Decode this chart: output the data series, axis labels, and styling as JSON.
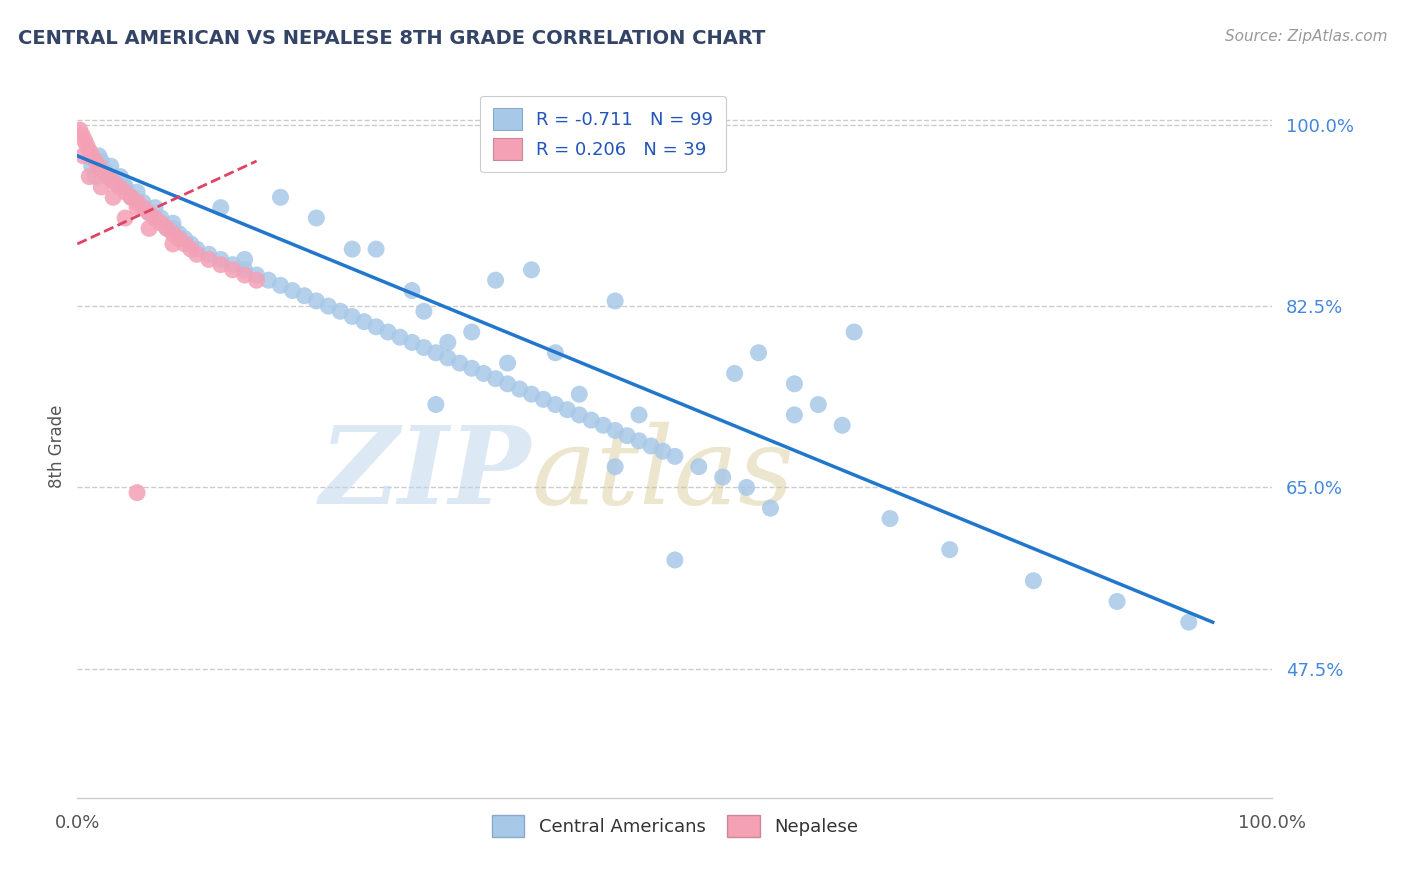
{
  "title": "CENTRAL AMERICAN VS NEPALESE 8TH GRADE CORRELATION CHART",
  "source": "Source: ZipAtlas.com",
  "ylabel": "8th Grade",
  "ytick_vals": [
    47.5,
    65.0,
    82.5,
    100.0
  ],
  "ytick_labels": [
    "47.5%",
    "65.0%",
    "82.5%",
    "100.0%"
  ],
  "xtick_vals": [
    0,
    100
  ],
  "xtick_labels": [
    "0.0%",
    "100.0%"
  ],
  "xlim": [
    0,
    100
  ],
  "ylim": [
    35,
    103
  ],
  "blue_color": "#a8c8e8",
  "pink_color": "#f4a0b5",
  "trend_blue_color": "#2277cc",
  "trend_pink_color": "#dd4466",
  "legend1_label": "R = -0.711   N = 99",
  "legend2_label": "R = 0.206   N = 39",
  "bottom_legend1": "Central Americans",
  "bottom_legend2": "Nepalese",
  "watermark_zip": "ZIP",
  "watermark_atlas": "atlas",
  "title_color": "#334466",
  "title_fontsize": 14,
  "label_color": "#555555",
  "ytick_color": "#4488dd",
  "xtick_color": "#555555",
  "source_color": "#999999",
  "grid_color": "#cccccc",
  "trend_blue_x0": 0,
  "trend_blue_y0": 97.0,
  "trend_blue_x1": 95,
  "trend_blue_y1": 52.0,
  "trend_pink_x0": 0,
  "trend_pink_y0": 88.5,
  "trend_pink_x1": 15,
  "trend_pink_y1": 96.5,
  "blue_x": [
    1.2,
    1.5,
    1.8,
    2.0,
    2.3,
    2.8,
    3.2,
    3.6,
    4.0,
    4.5,
    5.0,
    5.5,
    6.0,
    6.5,
    7.0,
    7.5,
    8.0,
    8.5,
    9.0,
    9.5,
    10.0,
    11.0,
    12.0,
    13.0,
    14.0,
    15.0,
    16.0,
    17.0,
    18.0,
    19.0,
    20.0,
    21.0,
    22.0,
    23.0,
    24.0,
    25.0,
    26.0,
    27.0,
    28.0,
    29.0,
    30.0,
    31.0,
    32.0,
    33.0,
    34.0,
    35.0,
    36.0,
    37.0,
    38.0,
    39.0,
    40.0,
    41.0,
    42.0,
    43.0,
    44.0,
    45.0,
    46.0,
    47.0,
    48.0,
    49.0,
    50.0,
    52.0,
    54.0,
    56.0,
    57.0,
    58.0,
    60.0,
    62.0,
    64.0,
    65.0,
    45.0,
    38.0,
    29.0,
    23.0,
    31.0,
    36.0,
    42.0,
    47.0,
    28.0,
    33.0,
    55.0,
    60.0,
    35.0,
    40.0,
    25.0,
    20.0,
    17.0,
    14.0,
    8.0,
    4.0,
    68.0,
    73.0,
    80.0,
    87.0,
    93.0,
    50.0,
    45.0,
    30.0,
    12.0
  ],
  "blue_y": [
    96.0,
    95.0,
    97.0,
    96.5,
    95.5,
    96.0,
    94.5,
    95.0,
    94.0,
    93.0,
    93.5,
    92.5,
    91.5,
    92.0,
    91.0,
    90.0,
    90.5,
    89.5,
    89.0,
    88.5,
    88.0,
    87.5,
    87.0,
    86.5,
    86.0,
    85.5,
    85.0,
    84.5,
    84.0,
    83.5,
    83.0,
    82.5,
    82.0,
    81.5,
    81.0,
    80.5,
    80.0,
    79.5,
    79.0,
    78.5,
    78.0,
    77.5,
    77.0,
    76.5,
    76.0,
    75.5,
    75.0,
    74.5,
    74.0,
    73.5,
    73.0,
    72.5,
    72.0,
    71.5,
    71.0,
    70.5,
    70.0,
    69.5,
    69.0,
    68.5,
    68.0,
    67.0,
    66.0,
    65.0,
    78.0,
    63.0,
    75.0,
    73.0,
    71.0,
    80.0,
    83.0,
    86.0,
    82.0,
    88.0,
    79.0,
    77.0,
    74.0,
    72.0,
    84.0,
    80.0,
    76.0,
    72.0,
    85.0,
    78.0,
    88.0,
    91.0,
    93.0,
    87.0,
    90.0,
    94.0,
    62.0,
    59.0,
    56.0,
    54.0,
    52.0,
    58.0,
    67.0,
    73.0,
    92.0
  ],
  "pink_x": [
    0.2,
    0.4,
    0.6,
    0.8,
    1.0,
    1.2,
    1.5,
    1.8,
    2.0,
    2.5,
    3.0,
    3.5,
    4.0,
    4.5,
    5.0,
    5.5,
    6.0,
    6.5,
    7.0,
    7.5,
    8.0,
    8.5,
    9.0,
    9.5,
    10.0,
    11.0,
    12.0,
    13.0,
    14.0,
    15.0,
    0.5,
    1.0,
    2.0,
    3.0,
    4.0,
    6.0,
    8.0,
    5.0,
    5.0
  ],
  "pink_y": [
    99.5,
    99.0,
    98.5,
    98.0,
    97.5,
    97.0,
    96.5,
    96.0,
    95.5,
    95.0,
    94.5,
    94.0,
    93.5,
    93.0,
    92.5,
    92.0,
    91.5,
    91.0,
    90.5,
    90.0,
    89.5,
    89.0,
    88.5,
    88.0,
    87.5,
    87.0,
    86.5,
    86.0,
    85.5,
    85.0,
    97.0,
    95.0,
    94.0,
    93.0,
    91.0,
    90.0,
    88.5,
    64.5,
    92.0
  ]
}
